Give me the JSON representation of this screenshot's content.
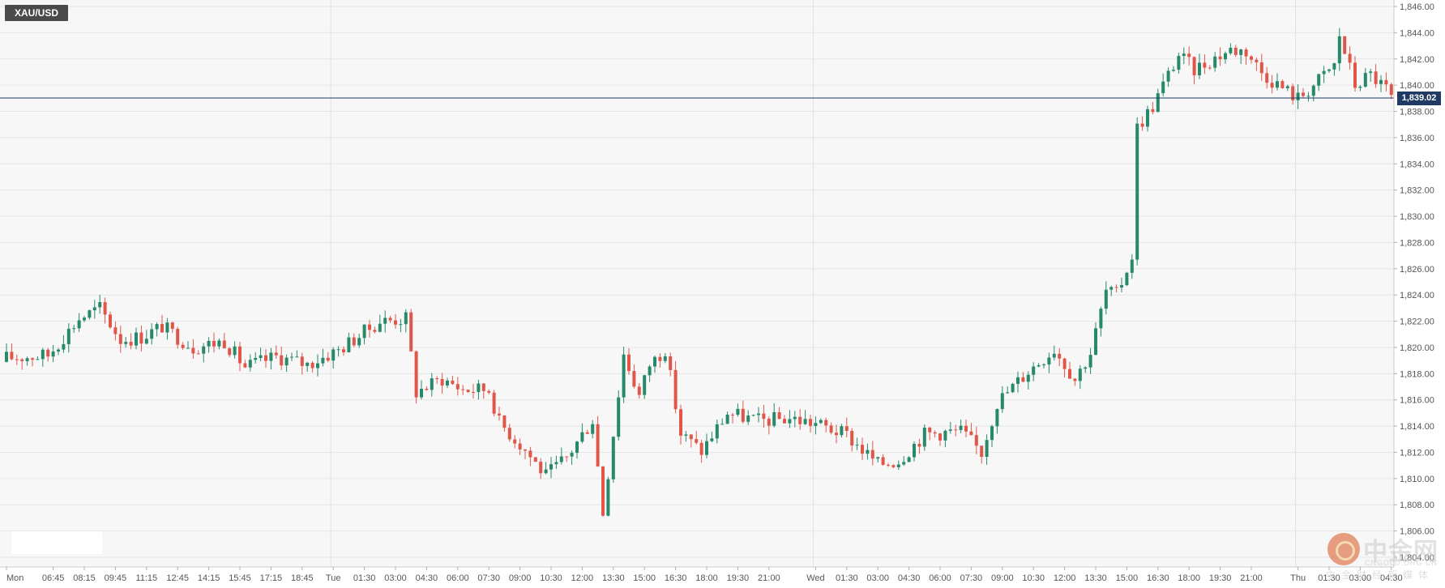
{
  "symbol": "XAU/USD",
  "current_price_label": "1,839.02",
  "watermark": {
    "title": "中金网",
    "subtitle": "CNGOLD.ORG.CN",
    "tagline": "中金财经新媒体"
  },
  "colors": {
    "up": "#26896a",
    "down": "#e0574a",
    "price_line": "#1f3b63",
    "grid": "#e6e6e6",
    "plot_bg": "#f7f7f7"
  },
  "chart_data": {
    "type": "candlestick",
    "ylim": [
      1804,
      1846
    ],
    "yticks": [
      1846,
      1844,
      1842,
      1840,
      1838,
      1836,
      1834,
      1832,
      1830,
      1828,
      1826,
      1824,
      1822,
      1820,
      1818,
      1816,
      1814,
      1812,
      1810,
      1808,
      1806,
      1804
    ],
    "ytick_labels": [
      "1,846.00",
      "1,844.00",
      "1,842.00",
      "1,840.00",
      "1,838.00",
      "1,836.00",
      "1,834.00",
      "1,832.00",
      "1,830.00",
      "1,828.00",
      "1,826.00",
      "1,824.00",
      "1,822.00",
      "1,820.00",
      "1,818.00",
      "1,816.00",
      "1,814.00",
      "1,812.00",
      "1,810.00",
      "1,808.00",
      "1,806.00",
      "1,804.00"
    ],
    "current_price": 1839.02,
    "x_ticks": [
      {
        "label": "Mon",
        "index": 0
      },
      {
        "label": "06:45",
        "index": 9
      },
      {
        "label": "08:15",
        "index": 15
      },
      {
        "label": "09:45",
        "index": 21
      },
      {
        "label": "11:15",
        "index": 27
      },
      {
        "label": "12:45",
        "index": 33
      },
      {
        "label": "14:15",
        "index": 39
      },
      {
        "label": "15:45",
        "index": 45
      },
      {
        "label": "17:15",
        "index": 51
      },
      {
        "label": "18:45",
        "index": 57
      },
      {
        "label": "Tue",
        "index": 63
      },
      {
        "label": "01:30",
        "index": 69
      },
      {
        "label": "03:00",
        "index": 75
      },
      {
        "label": "04:30",
        "index": 81
      },
      {
        "label": "06:00",
        "index": 87
      },
      {
        "label": "07:30",
        "index": 93
      },
      {
        "label": "09:00",
        "index": 99
      },
      {
        "label": "10:30",
        "index": 105
      },
      {
        "label": "12:00",
        "index": 111
      },
      {
        "label": "13:30",
        "index": 117
      },
      {
        "label": "15:00",
        "index": 123
      },
      {
        "label": "16:30",
        "index": 129
      },
      {
        "label": "18:00",
        "index": 135
      },
      {
        "label": "19:30",
        "index": 141
      },
      {
        "label": "21:00",
        "index": 147
      },
      {
        "label": "Wed",
        "index": 156
      },
      {
        "label": "01:30",
        "index": 162
      },
      {
        "label": "03:00",
        "index": 168
      },
      {
        "label": "04:30",
        "index": 174
      },
      {
        "label": "06:00",
        "index": 180
      },
      {
        "label": "07:30",
        "index": 186
      },
      {
        "label": "09:00",
        "index": 192
      },
      {
        "label": "10:30",
        "index": 198
      },
      {
        "label": "12:00",
        "index": 204
      },
      {
        "label": "13:30",
        "index": 210
      },
      {
        "label": "15:00",
        "index": 216
      },
      {
        "label": "16:30",
        "index": 222
      },
      {
        "label": "18:00",
        "index": 228
      },
      {
        "label": "19:30",
        "index": 234
      },
      {
        "label": "21:00",
        "index": 240
      },
      {
        "label": "Thu",
        "index": 249
      },
      {
        "label": "01:30",
        "index": 255
      },
      {
        "label": "03:00",
        "index": 261
      },
      {
        "label": "04:30",
        "index": 267
      }
    ],
    "day_separators": [
      63,
      156,
      249
    ],
    "anchors": [
      [
        0,
        1819.2
      ],
      [
        8,
        1819.4
      ],
      [
        14,
        1822.2
      ],
      [
        18,
        1823.0
      ],
      [
        22,
        1820.6
      ],
      [
        26,
        1820.8
      ],
      [
        30,
        1821.6
      ],
      [
        36,
        1820.0
      ],
      [
        42,
        1820.5
      ],
      [
        46,
        1818.5
      ],
      [
        52,
        1819.3
      ],
      [
        58,
        1818.7
      ],
      [
        64,
        1819.8
      ],
      [
        72,
        1822.0
      ],
      [
        77,
        1822.2
      ],
      [
        79,
        1816.6
      ],
      [
        84,
        1817.6
      ],
      [
        88,
        1816.8
      ],
      [
        93,
        1816.8
      ],
      [
        95,
        1814.3
      ],
      [
        100,
        1812.2
      ],
      [
        104,
        1810.2
      ],
      [
        108,
        1811.6
      ],
      [
        113,
        1814.5
      ],
      [
        115,
        1807.4
      ],
      [
        119,
        1819.5
      ],
      [
        122,
        1816.3
      ],
      [
        124,
        1818.7
      ],
      [
        127,
        1819.9
      ],
      [
        130,
        1813.4
      ],
      [
        134,
        1812.1
      ],
      [
        139,
        1815.0
      ],
      [
        145,
        1814.4
      ],
      [
        151,
        1814.6
      ],
      [
        156,
        1814.2
      ],
      [
        162,
        1813.3
      ],
      [
        168,
        1811.1
      ],
      [
        172,
        1811.4
      ],
      [
        177,
        1813.4
      ],
      [
        184,
        1813.6
      ],
      [
        188,
        1812.0
      ],
      [
        191,
        1815.8
      ],
      [
        197,
        1818.2
      ],
      [
        202,
        1819.9
      ],
      [
        206,
        1817.6
      ],
      [
        209,
        1819.6
      ],
      [
        212,
        1824.3
      ],
      [
        214,
        1824.0
      ],
      [
        217,
        1827.0
      ],
      [
        218,
        1836.8
      ],
      [
        221,
        1838.4
      ],
      [
        223,
        1840.0
      ],
      [
        226,
        1842.3
      ],
      [
        229,
        1841.2
      ],
      [
        233,
        1842.1
      ],
      [
        236,
        1842.7
      ],
      [
        239,
        1842.6
      ],
      [
        242,
        1841.0
      ],
      [
        246,
        1839.8
      ],
      [
        249,
        1839.0
      ],
      [
        252,
        1840.0
      ],
      [
        256,
        1841.5
      ],
      [
        257,
        1843.8
      ],
      [
        260,
        1840.0
      ],
      [
        263,
        1840.8
      ],
      [
        266,
        1839.7
      ],
      [
        267,
        1839.0
      ]
    ],
    "candle_count": 268
  }
}
